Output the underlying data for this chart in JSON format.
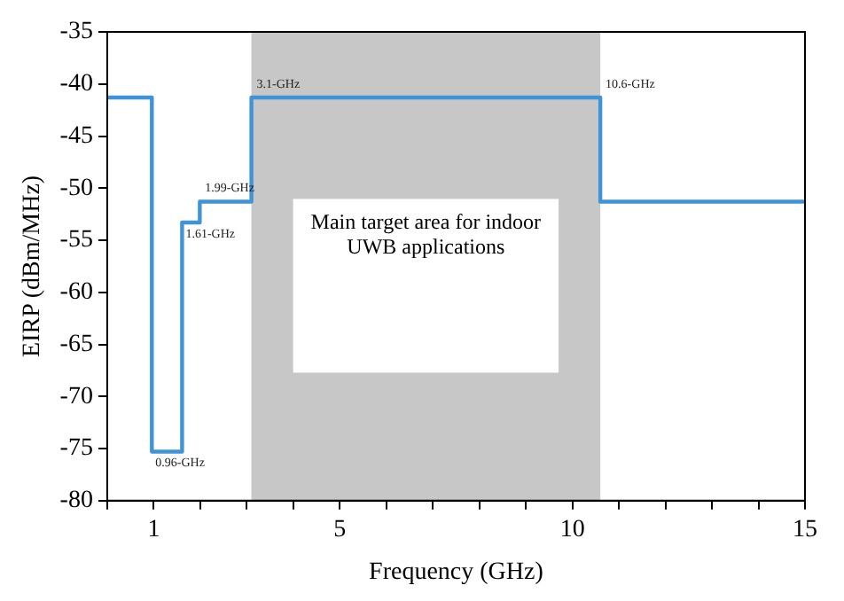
{
  "chart_data": {
    "type": "step",
    "xlabel": "Frequency (GHz)",
    "ylabel": "EIRP (dBm/MHz)",
    "x": [
      0,
      0.96,
      1.61,
      1.99,
      3.1,
      10.6,
      15
    ],
    "series": [
      {
        "color": "#3f94d9",
        "values": [
          -41.3,
          -75.3,
          -53.3,
          -51.3,
          -41.3,
          -51.3,
          -51.3
        ]
      }
    ],
    "xlim": [
      0,
      15
    ],
    "xticks": [
      {
        "value": 0,
        "label": null
      },
      1,
      {
        "value": 2,
        "label": null
      },
      {
        "value": 3,
        "label": null
      },
      {
        "value": 4,
        "label": null
      },
      5,
      {
        "value": 6,
        "label": null
      },
      {
        "value": 7,
        "label": null
      },
      {
        "value": 8,
        "label": null
      },
      {
        "value": 9,
        "label": null
      },
      10,
      {
        "value": 11,
        "label": null
      },
      {
        "value": 12,
        "label": null
      },
      {
        "value": 13,
        "label": null
      },
      {
        "value": 14,
        "label": null
      },
      15
    ],
    "ylim": [
      -80,
      -35
    ],
    "yticks": [
      -80,
      -75,
      -70,
      -65,
      -60,
      -55,
      -50,
      -45,
      -40,
      -35
    ],
    "bands": [
      {
        "axis": "x",
        "from": 3.1,
        "to": 10.6,
        "label": "Main target area for indoor\nUWB applications",
        "color": "#444444"
      }
    ],
    "annotations": [
      {
        "text": "0.96-GHz",
        "x": 0.96,
        "y": -75.3
      },
      {
        "text": "1.61-GHz",
        "x": 1.61,
        "y": -53.3
      },
      {
        "text": "1.99-GHz",
        "x": 1.99,
        "y": -51.3
      },
      {
        "text": "3.1-GHz",
        "x": 3.1,
        "y": -41.3
      },
      {
        "text": "10.6-GHz",
        "x": 10.6,
        "y": -41.3
      }
    ],
    "grid": false,
    "legend": false,
    "marker": "none",
    "line_style": "solid"
  }
}
